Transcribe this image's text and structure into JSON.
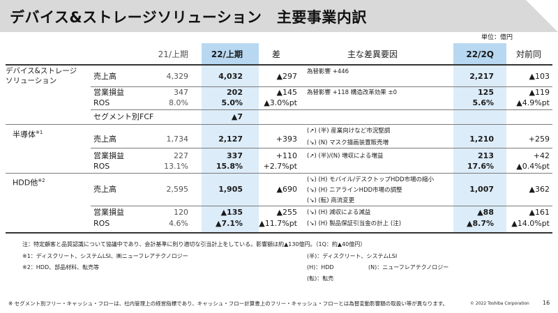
{
  "title": "デバイス&ストレージソリューション　主要事業内訳",
  "unit": "単位：億円",
  "headers": {
    "h21": "21/上期",
    "h22": "22/上期",
    "diff": "差",
    "factors": "主な差異要因",
    "q2": "22/2Q",
    "yoy": "対前同"
  },
  "segments": {
    "ds": "デバイス&ストレージ\nソリューション",
    "semi": "半導体",
    "semi_mark": "※1",
    "hdd": "HDD他",
    "hdd_mark": "※2"
  },
  "rows": {
    "ds_sales": {
      "label": "売上高",
      "h21": "4,329",
      "h22": "4,032",
      "diff": "▲297",
      "factor": "為替影響 +446",
      "q2": "2,217",
      "yoy": "▲103"
    },
    "ds_op": {
      "label": "営業損益",
      "h21": "347",
      "h22": "202",
      "diff": "▲145",
      "factor": "為替影響 +118 構造改革効果 ±0",
      "q2": "125",
      "yoy": "▲119"
    },
    "ds_ros": {
      "label": "ROS",
      "h21": "8.0%",
      "h22": "5.0%",
      "diff": "▲3.0%pt",
      "q2": "5.6%",
      "yoy": "▲4.9%pt"
    },
    "ds_fcf": {
      "label": "セグメント別FCF",
      "h22": "▲7"
    },
    "semi_sales": {
      "label": "売上高",
      "h21": "1,734",
      "h22": "2,127",
      "diff": "+393",
      "factor1": "(↗) (半) 産業向けなど市況堅調",
      "factor2": "(↘) (N) マスク描画装置販売増",
      "q2": "1,210",
      "yoy": "+259"
    },
    "semi_op": {
      "label": "営業損益",
      "h21": "227",
      "h22": "337",
      "diff": "+110",
      "factor": "(↗) (半)/(N) 増収による増益",
      "q2": "213",
      "yoy": "+42"
    },
    "semi_ros": {
      "label": "ROS",
      "h21": "13.1%",
      "h22": "15.8%",
      "diff": "+2.7%pt",
      "q2": "17.6%",
      "yoy": "▲0.4%pt"
    },
    "hdd_sales": {
      "label": "売上高",
      "h21": "2,595",
      "h22": "1,905",
      "diff": "▲690",
      "factor1": "(↘) (H) モバイル/デスクトップHDD市場の縮小",
      "factor2": "(↘) (H) ニアラインHDD市場の調整",
      "factor3": "(↘) (転) 商流変更",
      "q2": "1,007",
      "yoy": "▲362"
    },
    "hdd_op": {
      "label": "営業損益",
      "h21": "120",
      "h22": "▲135",
      "diff": "▲255",
      "factor": "(↘) (H) 減収による減益",
      "q2": "▲88",
      "yoy": "▲161"
    },
    "hdd_ros": {
      "label": "ROS",
      "h21": "4.6%",
      "h22": "▲7.1%",
      "diff": "▲11.7%pt",
      "factor": "(↘) (H) 製品保証引当金の計上 (注)",
      "q2": "▲8.7%",
      "yoy": "▲14.0%pt"
    }
  },
  "notes": {
    "n0": "注：特定顧客と品質認識について協議中であり、会計基準に則り適切な引当計上をしている。影響額は約▲130億円。（1Q：約▲40億円）",
    "n1": "※1：ディスクリート、システムLSI、㈱ニューフレアテクノロジー",
    "n2": "※2：HDD、部品材料、転売等",
    "l1": "(半)：ディスクリート、システムLSI",
    "l2": "(H)：HDD",
    "l3": "(N)：ニューフレアテクノロジー",
    "l4": "(転)：転売"
  },
  "footer": {
    "text": "※ セグメント別フリー・キャッシュ・フローは、社内管理上の経営指標であり、キャッシュ・フロー計算書上のフリー・キャッシュ・フローとは為替変動影響額の取扱い等が異なります。",
    "copyright": "© 2022 Toshiba Corporation",
    "page": "16"
  }
}
